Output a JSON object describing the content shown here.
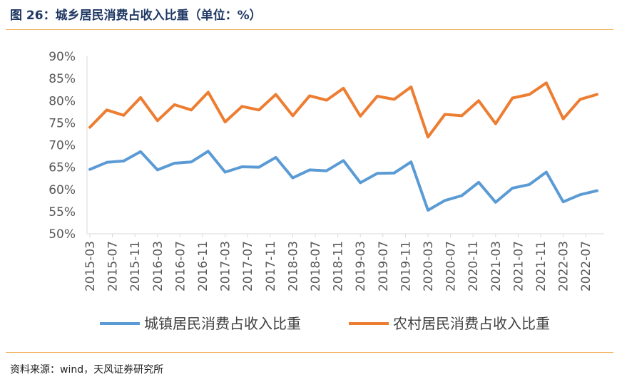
{
  "header": {
    "title": "图 26：城乡居民消费占收入比重（单位：%）"
  },
  "footer": {
    "source": "资料来源：wind，天风证券研究所"
  },
  "colors": {
    "urban": "#5b9bd5",
    "rural": "#ed7d31",
    "rule": "#f2b45c"
  },
  "chart_data": {
    "type": "line",
    "title": "",
    "xlabel": "",
    "ylabel": "",
    "ylim": [
      50,
      90
    ],
    "y_ticks": [
      "50%",
      "55%",
      "60%",
      "65%",
      "70%",
      "75%",
      "80%",
      "85%",
      "90%"
    ],
    "grid": false,
    "legend_position": "bottom",
    "x_tick_labels": [
      "2015-03",
      "2015-07",
      "2015-11",
      "2016-03",
      "2016-07",
      "2016-11",
      "2017-03",
      "2017-07",
      "2017-11",
      "2018-03",
      "2018-07",
      "2018-11",
      "2019-03",
      "2019-07",
      "2019-11",
      "2020-03",
      "2020-07",
      "2020-11",
      "2021-03",
      "2021-07",
      "2021-11",
      "2022-03",
      "2022-07"
    ],
    "x": [
      "2015-03",
      "2015-06",
      "2015-09",
      "2015-12",
      "2016-03",
      "2016-06",
      "2016-09",
      "2016-12",
      "2017-03",
      "2017-06",
      "2017-09",
      "2017-12",
      "2018-03",
      "2018-06",
      "2018-09",
      "2018-12",
      "2019-03",
      "2019-06",
      "2019-09",
      "2019-12",
      "2020-03",
      "2020-06",
      "2020-09",
      "2020-12",
      "2021-03",
      "2021-06",
      "2021-09",
      "2021-12",
      "2022-03",
      "2022-06",
      "2022-09"
    ],
    "series": [
      {
        "name": "城镇居民消费占收入比重",
        "values": [
          64.5,
          66.1,
          66.4,
          68.5,
          64.4,
          65.9,
          66.2,
          68.6,
          63.9,
          65.1,
          65.0,
          67.2,
          62.6,
          64.4,
          64.2,
          66.5,
          61.5,
          63.6,
          63.7,
          66.2,
          55.3,
          57.5,
          58.6,
          61.6,
          57.1,
          60.3,
          61.1,
          63.9,
          57.2,
          58.8,
          59.7
        ]
      },
      {
        "name": "农村居民消费占收入比重",
        "values": [
          74.0,
          77.9,
          76.7,
          80.7,
          75.5,
          79.1,
          77.9,
          81.9,
          75.2,
          78.7,
          77.9,
          81.4,
          76.6,
          81.1,
          80.1,
          82.8,
          76.5,
          81.0,
          80.3,
          83.1,
          71.8,
          76.9,
          76.6,
          80.0,
          74.8,
          80.6,
          81.4,
          84.0,
          75.9,
          80.3,
          81.4
        ]
      }
    ]
  }
}
